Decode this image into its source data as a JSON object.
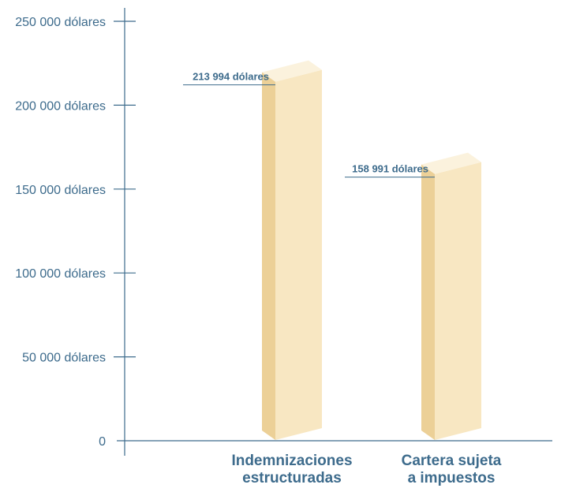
{
  "chart_data": {
    "type": "bar",
    "style": "3d-column",
    "categories": [
      [
        "Indemnizaciones",
        "estructuradas"
      ],
      [
        "Cartera sujeta",
        "a impuestos"
      ]
    ],
    "values": [
      213994,
      158991
    ],
    "data_labels": [
      "213 994 dólares",
      "158 991 dólares"
    ],
    "yticks": [
      0,
      50000,
      100000,
      150000,
      200000,
      250000
    ],
    "ytick_labels": [
      "0",
      "50 000 dólares",
      "100 000 dólares",
      "150 000 dólares",
      "200 000 dólares",
      "250 000 dólares"
    ],
    "ylim": [
      0,
      250000
    ],
    "grid": false,
    "colors": {
      "axis": "#3d6b8c",
      "text": "#3d6b8c",
      "bar_front": "#f8e7c2",
      "bar_side": "#ecd097",
      "bar_top": "#fbf2dd"
    }
  }
}
